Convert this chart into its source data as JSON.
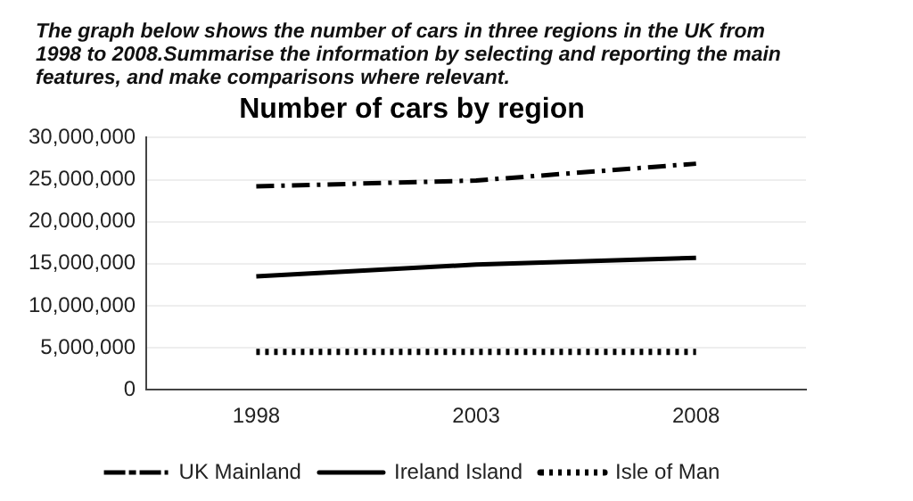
{
  "chart_data": {
    "type": "line",
    "title": "Number of cars by region",
    "annotations": [
      "The graph below shows the number of cars in three regions in the UK from 1998 to 2008.Summarise the information by selecting and reporting the main features, and make comparisons where relevant."
    ],
    "categories": [
      "1998",
      "2003",
      "2008"
    ],
    "series": [
      {
        "name": "UK Mainland",
        "color": "#000000",
        "line_style": "dashed",
        "values": [
          24200000,
          24900000,
          26900000
        ]
      },
      {
        "name": "Ireland Island",
        "color": "#000000",
        "line_style": "solid",
        "values": [
          13500000,
          14900000,
          15700000
        ]
      },
      {
        "name": "Isle of Man",
        "color": "#000000",
        "line_style": "dotted",
        "values": [
          4500000,
          4500000,
          4500000
        ]
      }
    ],
    "ylim": [
      0,
      30000000
    ],
    "yticks": [
      0,
      {
        "value": 5000000,
        "label": "5,000,000"
      },
      {
        "value": 10000000,
        "label": "10,000,000"
      },
      {
        "value": 15000000,
        "label": "15,000,000"
      },
      {
        "value": 20000000,
        "label": "20,000,000"
      },
      {
        "value": 25000000,
        "label": "25,000,000"
      },
      {
        "value": 30000000,
        "label": "30,000,000"
      }
    ],
    "grid": "y",
    "legend": "bottom",
    "marker": "none"
  }
}
